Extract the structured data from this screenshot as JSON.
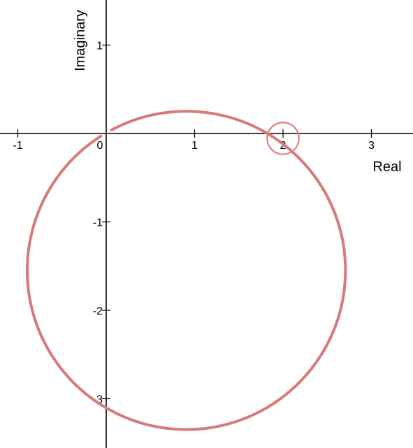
{
  "chart_data": {
    "type": "line",
    "title": "",
    "xlabel": "Real",
    "ylabel": "Imaginary",
    "xlim": [
      -1.2,
      3.5
    ],
    "ylim": [
      -3.55,
      1.52
    ],
    "x_ticks": [
      -1,
      0,
      1,
      2,
      3
    ],
    "x_tick_labels": [
      "-1",
      "0",
      "1",
      "2",
      "3"
    ],
    "y_ticks": [
      1,
      -1,
      -2,
      -3
    ],
    "y_tick_labels": [
      "1",
      "-1",
      "-2",
      "-3"
    ],
    "grid": false,
    "series": [
      {
        "color": "#d67a7a",
        "curve": "circle",
        "center": [
          1.0,
          -1.52
        ],
        "radius": 1.8,
        "start_point": [
          0.06,
          0.04
        ],
        "end_point": [
          -0.06,
          -0.03
        ],
        "direction": "clockwise"
      }
    ],
    "markers": [
      {
        "shape": "open-circle",
        "x": 2.0,
        "y": 0.0,
        "radius": 0.18,
        "color": "#d67a7a"
      }
    ]
  }
}
